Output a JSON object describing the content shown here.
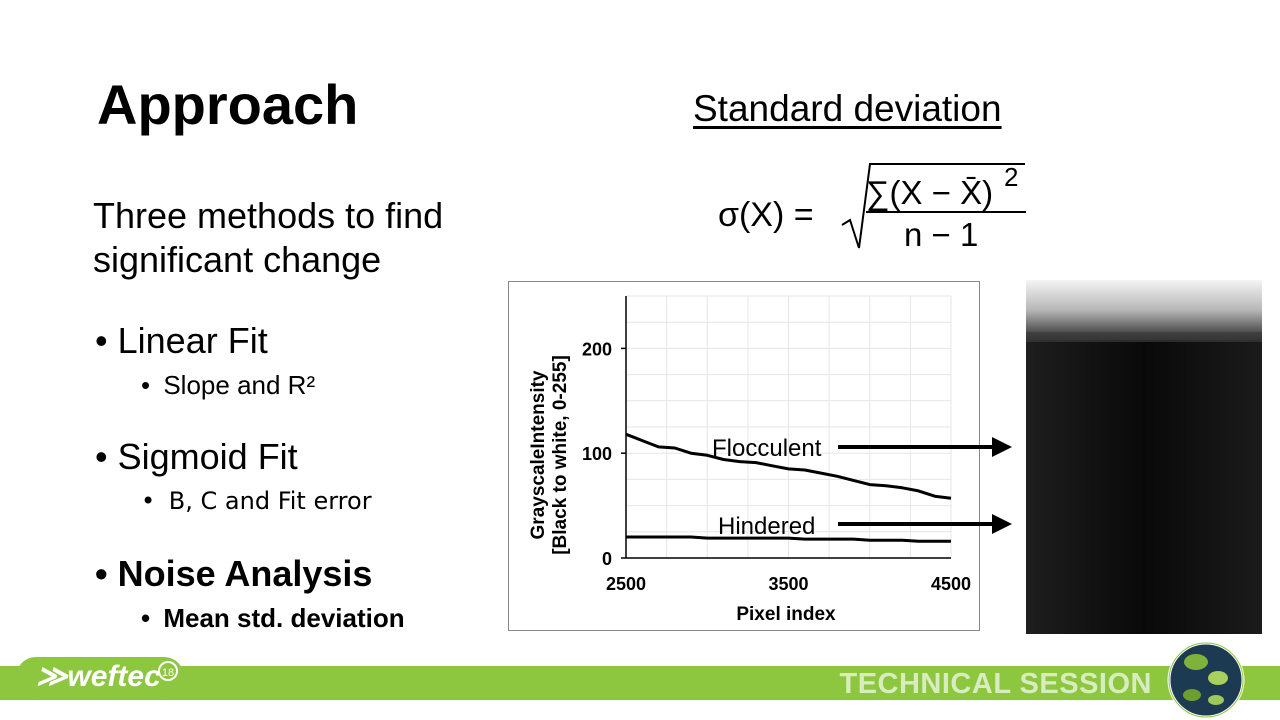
{
  "slide": {
    "title": "Approach",
    "formula_heading": "Standard deviation",
    "intro_line1": "Three methods to find",
    "intro_line2": "significant change",
    "bullets": [
      {
        "label": "Linear Fit",
        "sub": "Slope and R²"
      },
      {
        "label": "Sigmoid Fit",
        "sub": "B, C and Fit error"
      },
      {
        "label": "Noise Analysis",
        "sub": "Mean std. deviation"
      }
    ],
    "bullet_glyph": "•",
    "formula": {
      "lhs": "σ(X) =",
      "numerator": "∑(X − X̄)",
      "exponent": "2",
      "denominator": "n − 1"
    }
  },
  "footer": {
    "session": "TECHNICAL SESSION",
    "logo": "weftec",
    "logo_superscript": "18",
    "accent_color": "#8dc63f"
  },
  "chart_data": {
    "type": "line",
    "xlabel": "Pixel index",
    "ylabel_line1": "GrayscaleIntensity",
    "ylabel_line2": "[Black to white, 0-255]",
    "xlim": [
      2500,
      4500
    ],
    "ylim": [
      0,
      250
    ],
    "xticks": [
      2500,
      3500,
      4500
    ],
    "yticks": [
      0,
      100,
      200
    ],
    "grid": true,
    "x": [
      2500,
      2600,
      2700,
      2800,
      2900,
      3000,
      3100,
      3200,
      3300,
      3400,
      3500,
      3600,
      3700,
      3800,
      3900,
      4000,
      4100,
      4200,
      4300,
      4400,
      4500
    ],
    "series": [
      {
        "name": "Flocculent",
        "values": [
          118,
          112,
          106,
          105,
          100,
          98,
          94,
          92,
          91,
          88,
          85,
          84,
          81,
          78,
          74,
          70,
          69,
          67,
          64,
          59,
          57
        ]
      },
      {
        "name": "Hindered",
        "values": [
          20,
          20,
          20,
          20,
          20,
          19,
          19,
          19,
          19,
          19,
          19,
          18,
          18,
          18,
          18,
          17,
          17,
          17,
          16,
          16,
          16
        ]
      }
    ],
    "line_color": "#000000"
  }
}
